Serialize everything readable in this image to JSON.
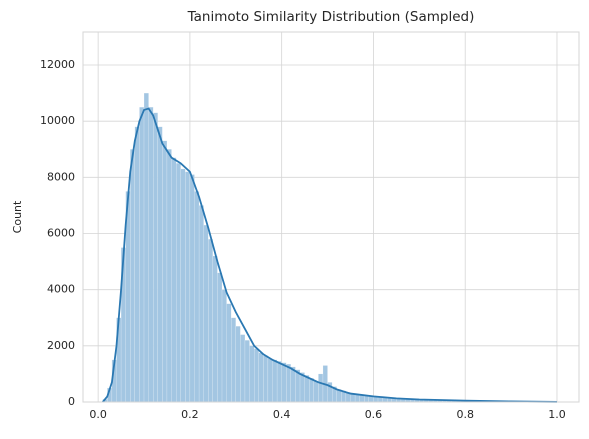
{
  "chart_data": {
    "type": "histogram",
    "title": "Tanimoto Similarity Distribution (Sampled)",
    "ylabel": "Count",
    "bins": [
      0.01,
      0.02,
      0.03,
      0.04,
      0.05,
      0.06,
      0.07,
      0.08,
      0.09,
      0.1,
      0.11,
      0.12,
      0.13,
      0.14,
      0.15,
      0.16,
      0.17,
      0.18,
      0.19,
      0.2,
      0.21,
      0.22,
      0.23,
      0.24,
      0.25,
      0.26,
      0.27,
      0.28,
      0.29,
      0.3,
      0.31,
      0.32,
      0.33,
      0.34,
      0.35,
      0.36,
      0.37,
      0.38,
      0.39,
      0.4,
      0.41,
      0.42,
      0.43,
      0.44,
      0.45,
      0.46,
      0.47,
      0.48,
      0.49,
      0.5,
      0.51,
      0.52,
      0.53,
      0.54,
      0.55,
      0.56,
      0.57,
      0.58,
      0.59,
      0.6,
      0.61,
      0.62,
      0.63,
      0.64,
      0.65,
      0.66,
      0.67,
      0.68,
      0.69,
      0.7,
      0.71,
      0.72,
      0.73,
      0.74,
      0.75,
      0.76,
      0.77,
      0.78,
      0.79,
      0.8,
      0.81,
      0.82,
      0.83,
      0.84,
      0.85,
      0.86,
      0.87,
      0.88,
      0.89,
      0.9,
      0.91,
      0.92,
      0.93,
      0.94,
      0.95,
      0.96,
      0.97,
      0.98,
      0.99,
      1.0
    ],
    "values": [
      100,
      500,
      1500,
      3000,
      5500,
      7500,
      9000,
      9800,
      10500,
      11000,
      10500,
      10300,
      9800,
      9300,
      9000,
      8700,
      8500,
      8300,
      8200,
      8100,
      7500,
      7000,
      6300,
      5800,
      5200,
      4600,
      4000,
      3500,
      3000,
      2700,
      2400,
      2200,
      2000,
      1900,
      1750,
      1650,
      1550,
      1500,
      1450,
      1400,
      1350,
      1250,
      1150,
      1050,
      950,
      850,
      750,
      1000,
      1300,
      700,
      550,
      450,
      400,
      350,
      300,
      270,
      250,
      230,
      210,
      190,
      170,
      160,
      150,
      140,
      130,
      120,
      110,
      100,
      95,
      90,
      85,
      80,
      75,
      70,
      65,
      60,
      55,
      50,
      45,
      42,
      40,
      38,
      35,
      32,
      30,
      28,
      26,
      24,
      22,
      20,
      18,
      16,
      15,
      14,
      13,
      12,
      11,
      10,
      10
    ],
    "color": "#a3c6e2",
    "kde": {
      "x": [
        0.01,
        0.02,
        0.03,
        0.04,
        0.05,
        0.06,
        0.07,
        0.08,
        0.09,
        0.1,
        0.11,
        0.12,
        0.13,
        0.14,
        0.16,
        0.18,
        0.2,
        0.22,
        0.24,
        0.26,
        0.28,
        0.3,
        0.32,
        0.34,
        0.36,
        0.38,
        0.4,
        0.42,
        0.44,
        0.46,
        0.48,
        0.5,
        0.52,
        0.55,
        0.6,
        0.65,
        0.7,
        0.8,
        0.9,
        1.0
      ],
      "values": [
        0,
        200,
        700,
        2000,
        4000,
        6300,
        8200,
        9300,
        10000,
        10400,
        10450,
        10200,
        9700,
        9200,
        8700,
        8500,
        8200,
        7300,
        6200,
        5000,
        3900,
        3200,
        2600,
        2000,
        1700,
        1500,
        1350,
        1200,
        1000,
        850,
        700,
        600,
        450,
        300,
        200,
        130,
        90,
        50,
        20,
        5
      ],
      "color": "#2a78b2"
    },
    "xlim": [
      -0.033,
      1.048
    ],
    "ylim": [
      0,
      13175
    ],
    "xticks": [
      {
        "value": 0,
        "label": "0.0"
      },
      0.2,
      0.4,
      0.6,
      0.8,
      {
        "value": 1,
        "label": "1.0"
      }
    ],
    "yticks": [
      0,
      2000,
      4000,
      6000,
      8000,
      10000,
      12000
    ],
    "grid": true
  }
}
